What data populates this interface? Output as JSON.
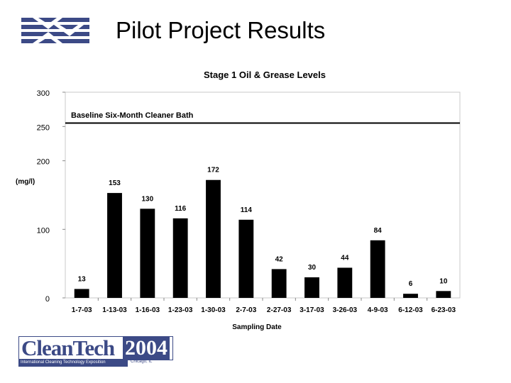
{
  "slide": {
    "title": "Pilot Project Results",
    "logo_bottom": {
      "brand": "CleanTech",
      "year": "2004",
      "tagline": "International Cleaning Technology Exposition",
      "city": "Chicago, IL"
    }
  },
  "colors": {
    "bar": "#000000",
    "baseline": "#000000",
    "gridline": "#c8c8c8",
    "logo_blue": "#3c4a86"
  },
  "chart_data": {
    "type": "bar",
    "title": "Stage 1 Oil & Grease Levels",
    "xlabel": "Sampling Date",
    "ylabel": "(mg/l)",
    "ylim": [
      0,
      300
    ],
    "yticks": [
      0,
      100,
      200,
      250,
      300
    ],
    "grid": false,
    "categories": [
      "1-7-03",
      "1-13-03",
      "1-16-03",
      "1-23-03",
      "1-30-03",
      "2-7-03",
      "2-27-03",
      "3-17-03",
      "3-26-03",
      "4-9-03",
      "6-12-03",
      "6-23-03"
    ],
    "values": [
      13,
      153,
      130,
      116,
      172,
      114,
      42,
      30,
      44,
      84,
      6,
      10
    ],
    "data_labels": [
      "13",
      "153",
      "130",
      "116",
      "172",
      "114",
      "42",
      "30",
      "44",
      "84",
      "6",
      "10"
    ],
    "reference_line": {
      "value": 255,
      "label": "Baseline Six-Month Cleaner Bath"
    }
  }
}
